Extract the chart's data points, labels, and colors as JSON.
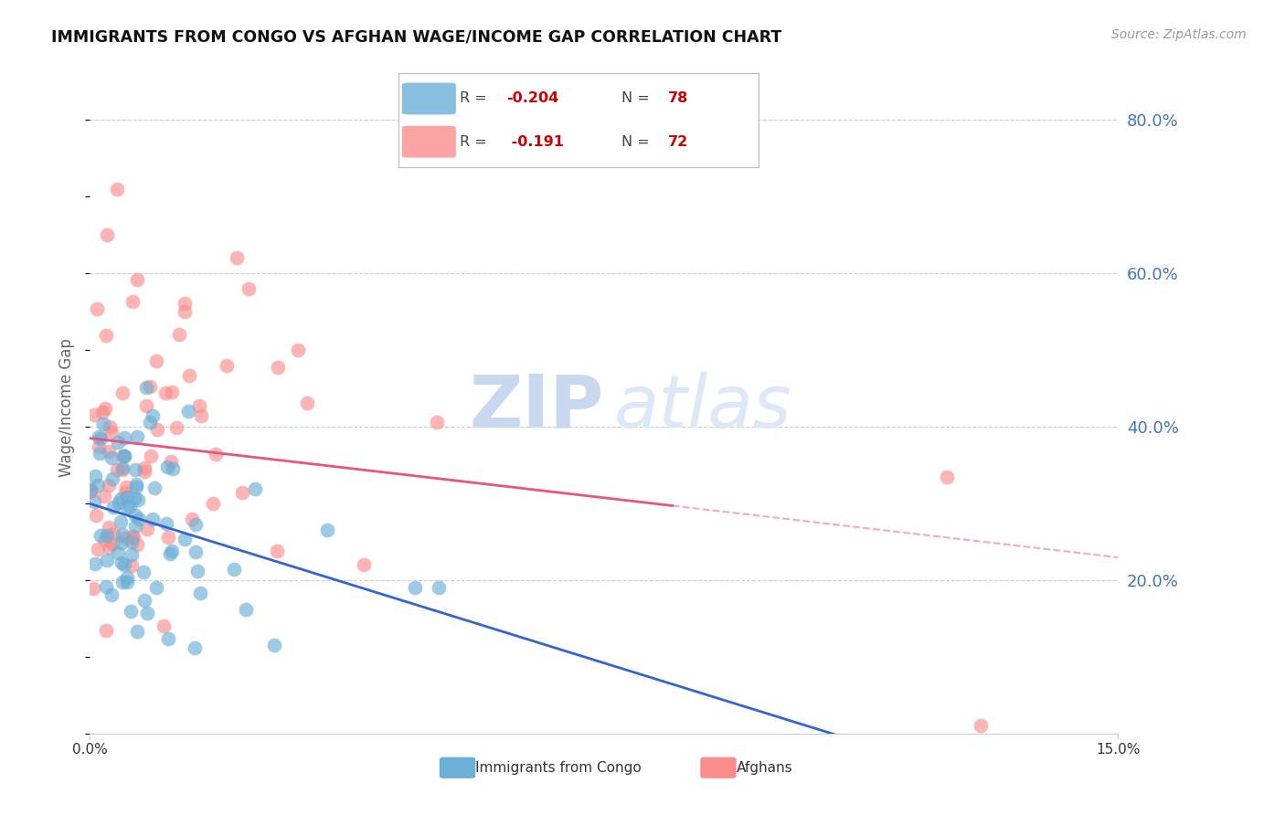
{
  "title": "IMMIGRANTS FROM CONGO VS AFGHAN WAGE/INCOME GAP CORRELATION CHART",
  "source": "Source: ZipAtlas.com",
  "ylabel": "Wage/Income Gap",
  "legend_congo": "Immigrants from Congo",
  "legend_afghan": "Afghans",
  "legend_r_congo": "-0.204",
  "legend_n_congo": "78",
  "legend_r_afghan": "-0.191",
  "legend_n_afghan": "72",
  "right_ytick_vals": [
    0.2,
    0.4,
    0.6,
    0.8
  ],
  "right_ytick_labels": [
    "20.0%",
    "40.0%",
    "60.0%",
    "80.0%"
  ],
  "xlim": [
    0.0,
    0.15
  ],
  "ylim": [
    0.0,
    0.85
  ],
  "color_congo": "#6baed6",
  "color_afghan": "#fc8d8d",
  "color_regression_congo": "#3366cc",
  "color_regression_afghan": "#e8547a",
  "watermark_color": "#c8d8ee"
}
